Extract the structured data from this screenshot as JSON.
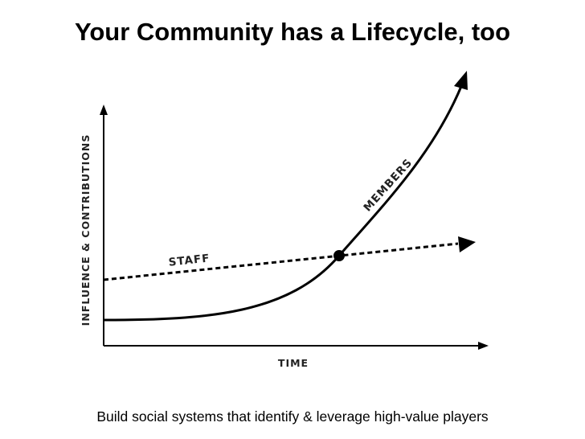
{
  "title": "Your Community has a Lifecycle, too",
  "caption": "Build social systems that identify & leverage high-value players",
  "diagram": {
    "y_axis_label": "INFLUENCE & CONTRIBUTIONS",
    "x_axis_label": "TIME",
    "series": {
      "members": {
        "label": "MEMBERS",
        "style": "solid",
        "shape": "exponential"
      },
      "staff": {
        "label": "STAFF",
        "style": "dashed",
        "shape": "linear"
      }
    },
    "intersection": "marked",
    "colors": {
      "line": "#000000",
      "text": "#222222"
    }
  }
}
